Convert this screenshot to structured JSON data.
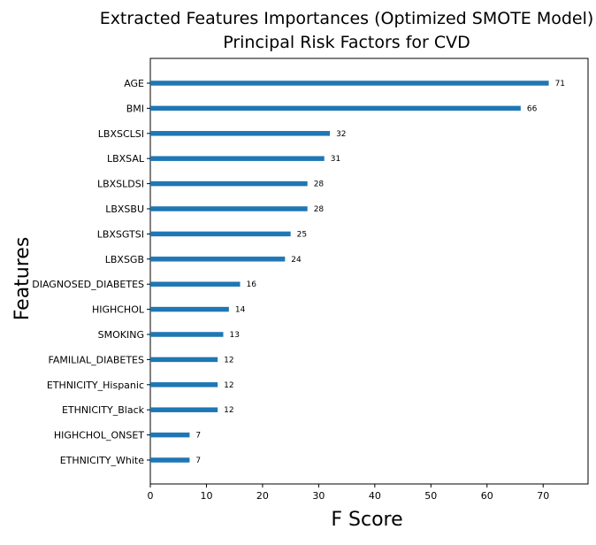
{
  "chart_data": {
    "type": "bar",
    "orientation": "horizontal",
    "title": "Extracted Features Importances (Optimized SMOTE Model)",
    "subtitle": "Principal Risk Factors for CVD",
    "xlabel": "F Score",
    "ylabel": "Features",
    "xlim": [
      0,
      78
    ],
    "xticks": [
      0,
      10,
      20,
      30,
      40,
      50,
      60,
      70
    ],
    "grid": false,
    "bar_color": "#1f77b4",
    "categories": [
      "AGE",
      "BMI",
      "LBXSCLSI",
      "LBXSAL",
      "LBXSLDSI",
      "LBXSBU",
      "LBXSGTSI",
      "LBXSGB",
      "DIAGNOSED_DIABETES",
      "HIGHCHOL",
      "SMOKING",
      "FAMILIAL_DIABETES",
      "ETHNICITY_Hispanic",
      "ETHNICITY_Black",
      "HIGHCHOL_ONSET",
      "ETHNICITY_White"
    ],
    "values": [
      71,
      66,
      32,
      31,
      28,
      28,
      25,
      24,
      16,
      14,
      13,
      12,
      12,
      12,
      7,
      7
    ]
  }
}
